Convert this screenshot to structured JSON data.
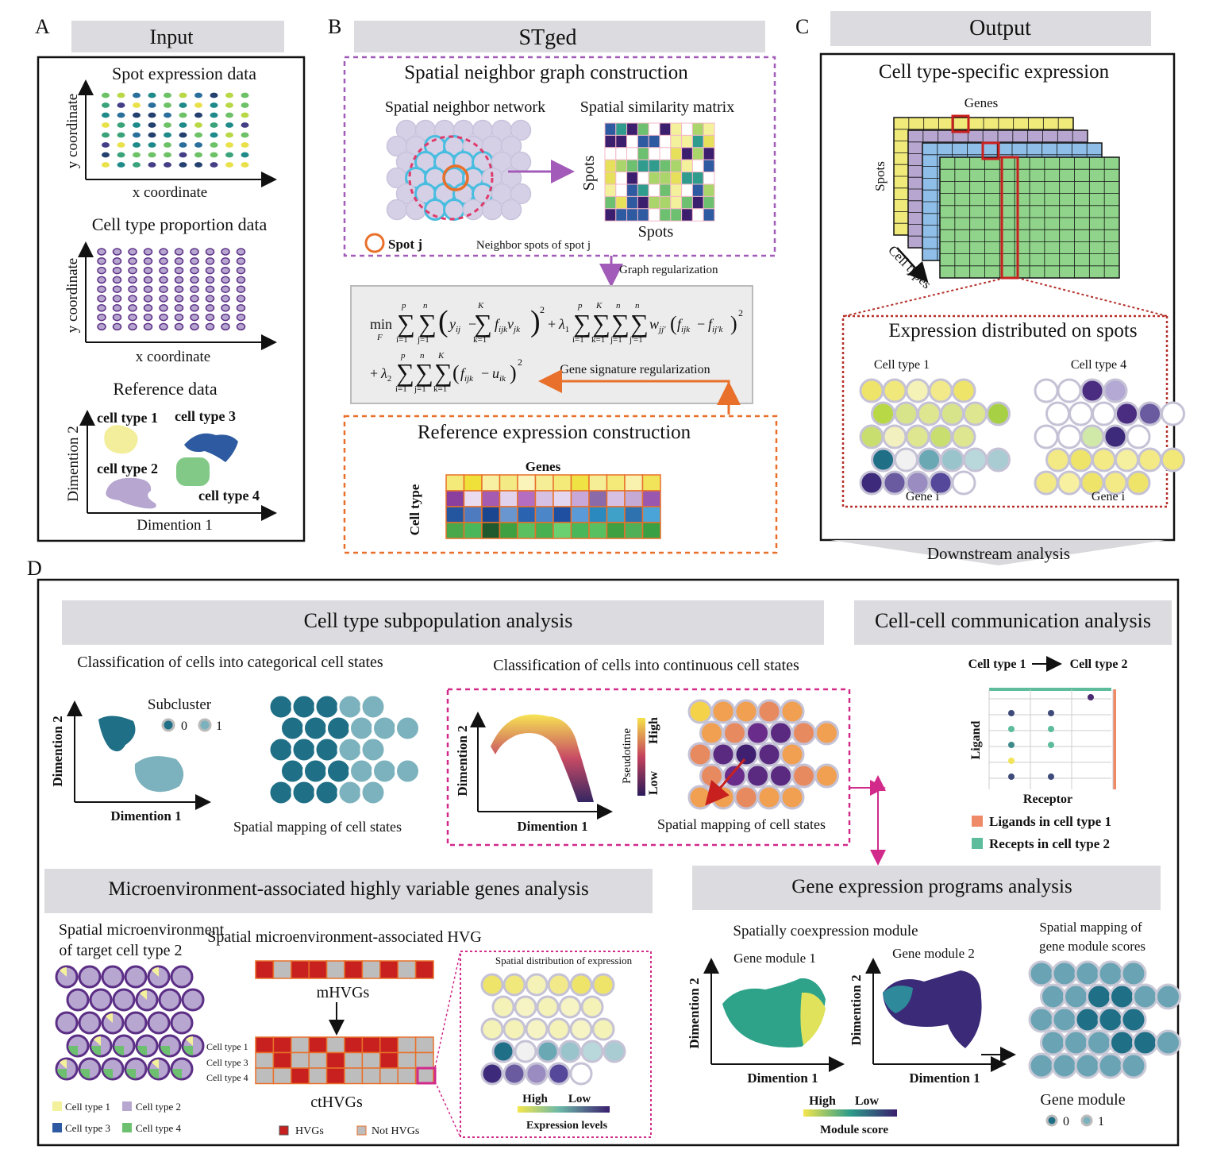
{
  "panels": {
    "A": {
      "letter": "A",
      "header": "Input",
      "spot_title": "Spot expression data",
      "ylabel": "y coordinate",
      "xlabel": "x coordinate",
      "prop_title": "Cell type proportion data",
      "ref_title": "Reference data",
      "ref_xlabel": "Dimention 1",
      "ref_ylabel": "Dimention 2",
      "clusters": [
        "cell type 1",
        "cell type 2",
        "cell type 3",
        "cell type 4"
      ]
    },
    "B": {
      "letter": "B",
      "header": "STged",
      "graph_title": "Spatial neighbor graph construction",
      "network_title": "Spatial neighbor network",
      "matrix_title": "Spatial similarity matrix",
      "spots_label": "Spots",
      "spot_j": "Spot j",
      "neighbor_label": "Neighbor spots of spot j",
      "graph_reg": "Graph regularization",
      "gene_sig_reg": "Gene signature regularization",
      "ref_title": "Reference expression construction",
      "genes_label": "Genes",
      "celltype_label": "Cell type"
    },
    "C": {
      "letter": "C",
      "header": "Output",
      "cte_title": "Cell type-specific expression",
      "genes": "Genes",
      "spots": "Spots",
      "cell_types": "Cell types",
      "dist_title": "Expression distributed on spots",
      "ct1": "Cell type 1",
      "ct4": "Cell type 4",
      "gene_i": "Gene i"
    },
    "D": {
      "letter": "D",
      "downstream": "Downstream analysis",
      "sub_title": "Cell type subpopulation analysis",
      "cat_title": "Classification of cells into categorical cell states",
      "cont_title": "Classification of cells into continuous cell states",
      "subcluster": "Subcluster",
      "sub0": "0",
      "sub1": "1",
      "dim1": "Dimention 1",
      "dim2": "Dimention 2",
      "spatial_map": "Spatial mapping of cell states",
      "pseudotime": "Pseudotime",
      "high": "High",
      "low": "Low",
      "ccc_title": "Cell-cell communication analysis",
      "ct1": "Cell type 1",
      "ct2": "Cell type 2",
      "ligand": "Ligand",
      "receptor": "Receptor",
      "lig_legend": "Ligands in cell type 1",
      "rec_legend": "Recepts in cell type 2",
      "mhvg_title": "Microenvironment-associated highly variable genes analysis",
      "micro_title1": "Spatial microenvironment",
      "micro_title2": "of target cell type 2",
      "hvg_title": "Spatial microenvironment-associated HVG",
      "mhvgs": "mHVGs",
      "cthvgs": "ctHVGs",
      "rows": [
        "Cell type 1",
        "Cell type 3",
        "Cell type 4"
      ],
      "hvgs": "HVGs",
      "not_hvgs": "Not HVGs",
      "spatial_dist": "Spatial distribution of expression",
      "expr_levels": "Expression levels",
      "leg_ct": [
        "Cell type 1",
        "Cell type 2",
        "Cell type 3",
        "Cell type 4"
      ],
      "gep_title": "Gene expression programs analysis",
      "coexp_title": "Spatially coexpression module",
      "gm1": "Gene module 1",
      "gm2": "Gene module 2",
      "module_score": "Module score",
      "map_gm1": "Spatial mapping of",
      "map_gm2": "gene module scores",
      "gene_module": "Gene module",
      "gm0": "0",
      "gm_1": "1"
    }
  },
  "colors": {
    "yellow": "#f1e34e",
    "purple": "#5c2f86",
    "lavender": "#b6a6d0",
    "blue": "#2d5aa0",
    "green": "#6cc06f",
    "teal": "#1f6f86",
    "lightteal": "#7cb2bd",
    "gray_header": "#dcdce0",
    "red": "#c8201e",
    "orange": "#e8702a",
    "magenta": "#d12a8a"
  }
}
